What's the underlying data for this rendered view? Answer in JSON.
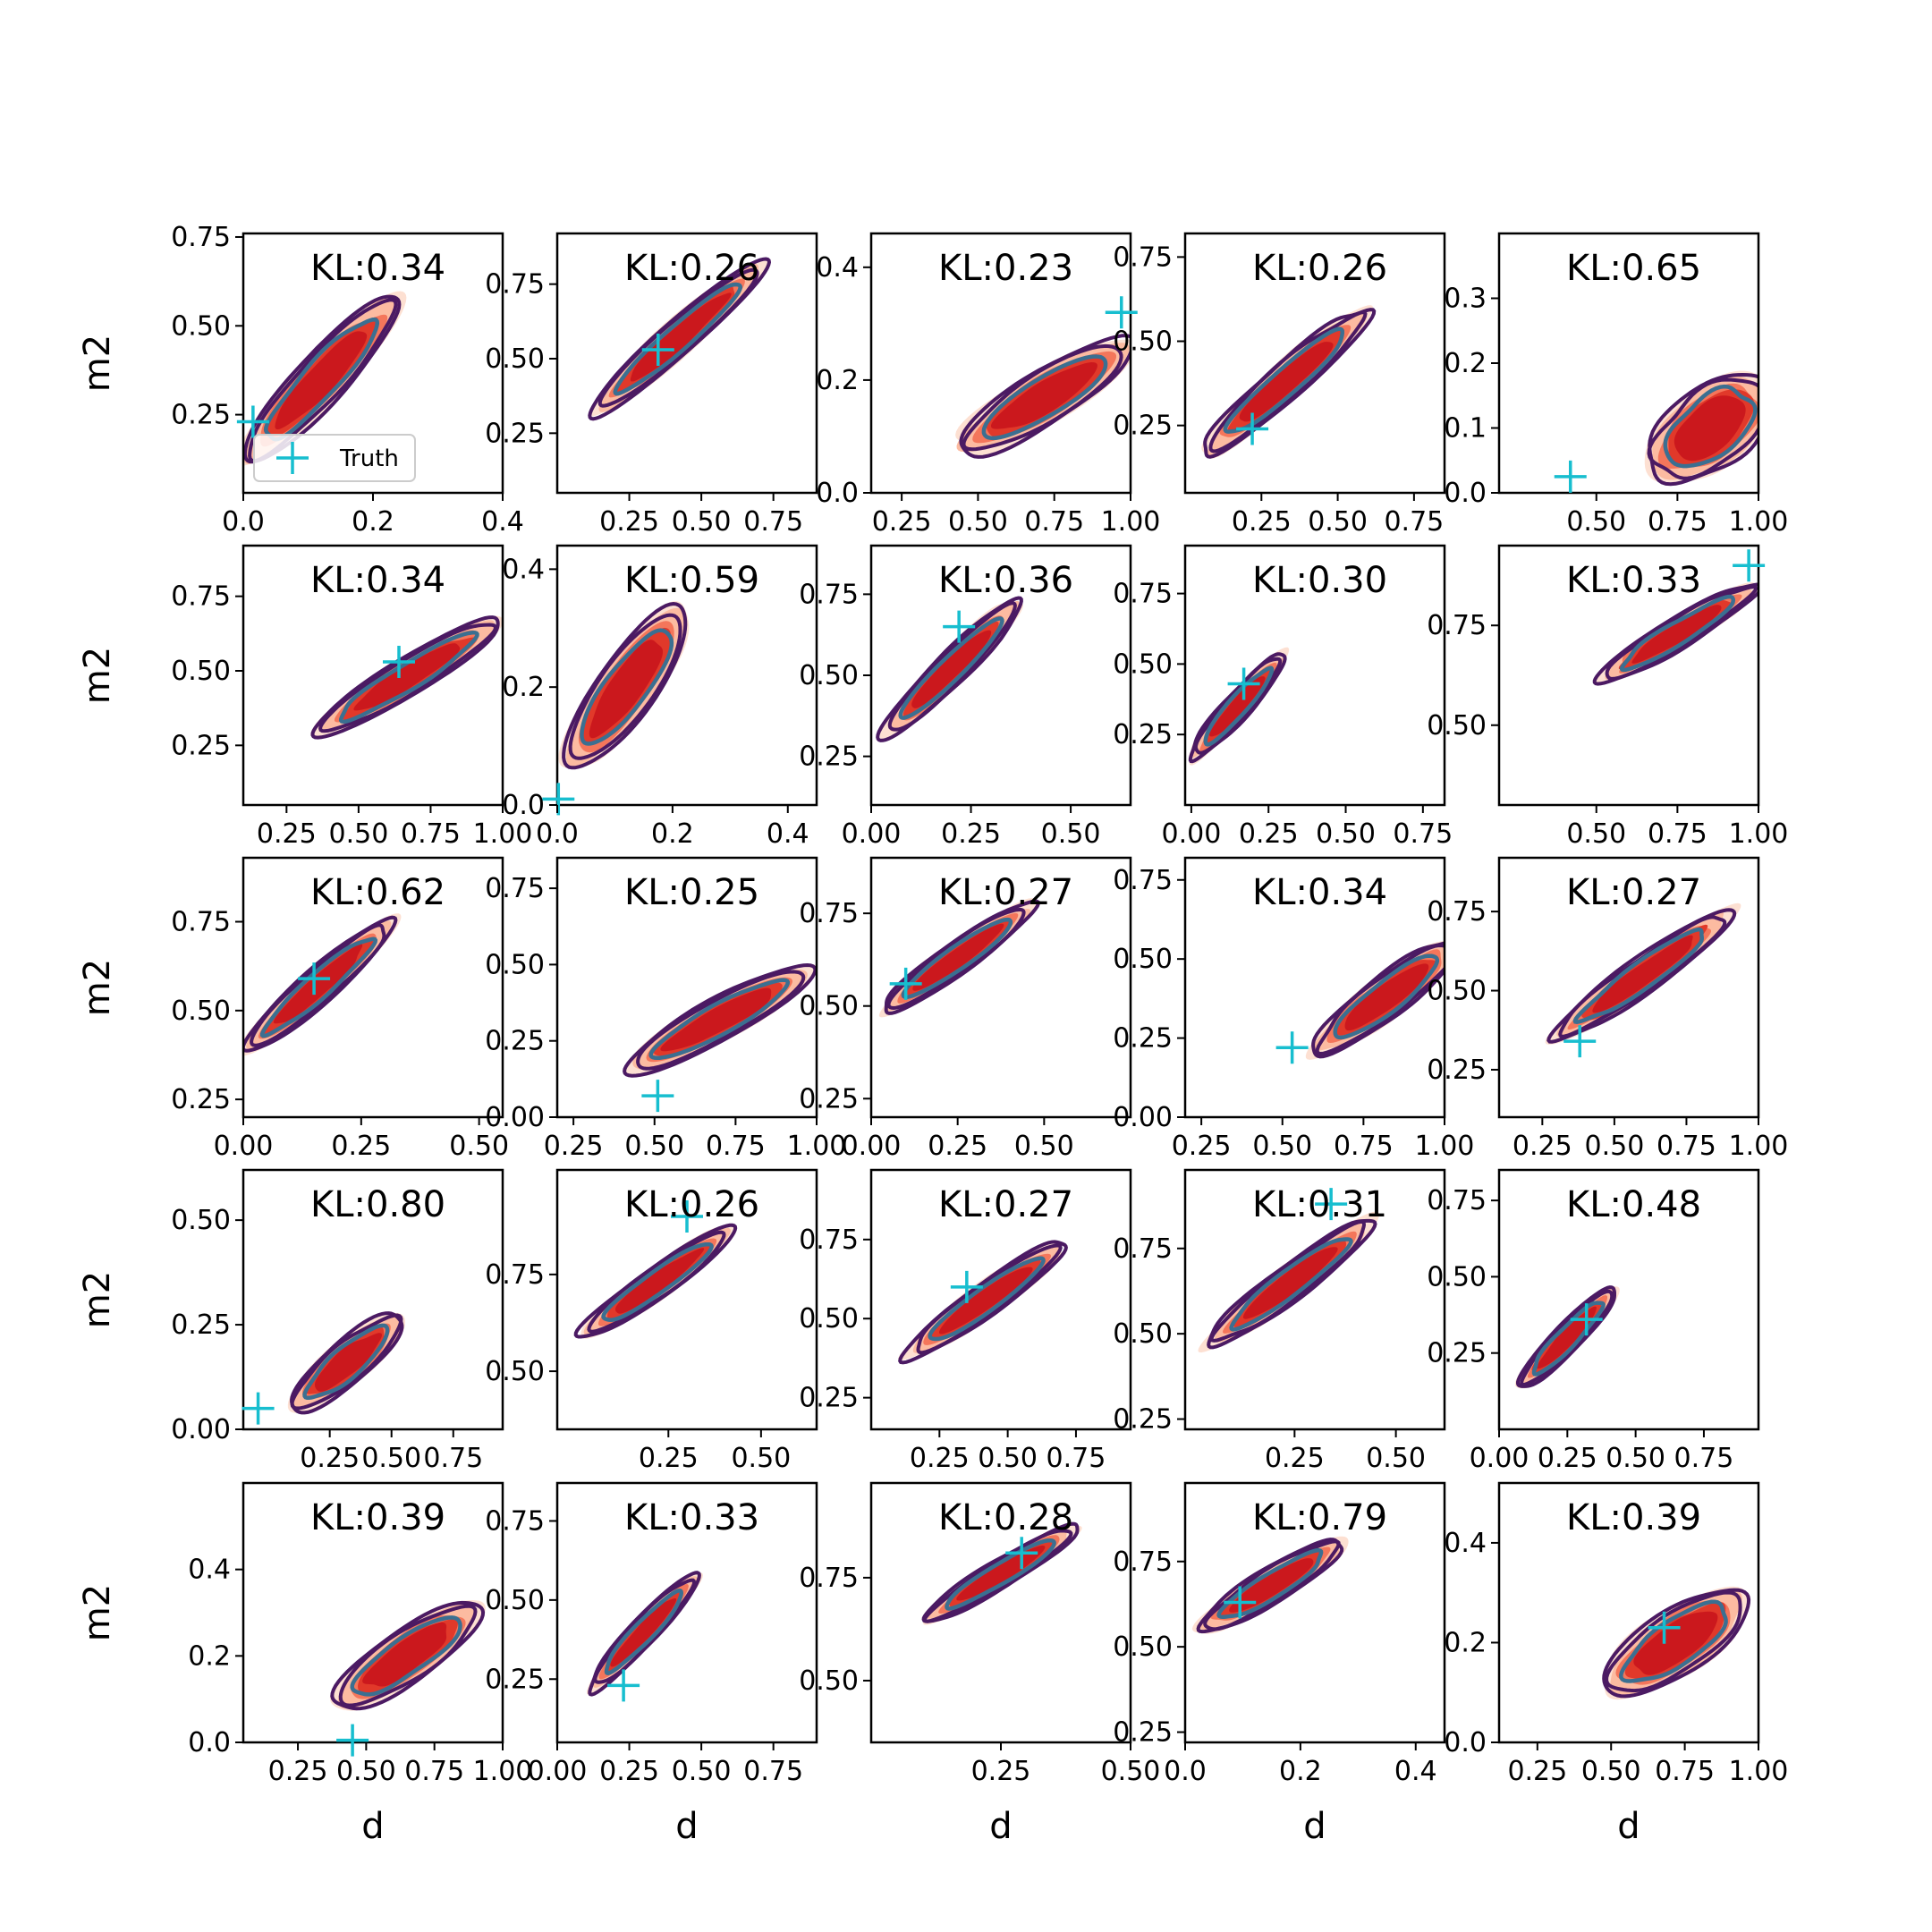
{
  "chart_data": {
    "type": "contour-grid",
    "xlabel": "d",
    "ylabel": "m2",
    "legend": {
      "label": "Truth",
      "placement": "lower-right of first panel"
    },
    "colors": {
      "fill_levels": [
        "#fde0d2",
        "#fcbba1",
        "#f4765b",
        "#e1392a",
        "#cb181d"
      ],
      "outer_contour": "#4b1a63",
      "inner_contour": "#3b6f91",
      "truth_marker": "#17becf"
    },
    "panels": [
      {
        "kl": "KL:0.34",
        "xlim": [
          0,
          0.4
        ],
        "xticks": [
          0,
          0.2,
          0.4
        ],
        "xticklabels": [
          "0.0",
          "0.2",
          "0.4"
        ],
        "ylim": [
          0.03,
          0.76
        ],
        "yticks": [
          0.25,
          0.5,
          0.75
        ],
        "yticklabels": [
          "0.25",
          "0.50",
          "0.75"
        ],
        "truth": [
          0.015,
          0.23
        ],
        "center": [
          0.12,
          0.35
        ],
        "size": [
          0.13,
          0.17
        ],
        "rho": 0.82,
        "rot": 0.82
      },
      {
        "kl": "KL:0.26",
        "xlim": [
          0,
          0.9
        ],
        "xticks": [
          0.25,
          0.5,
          0.75
        ],
        "xticklabels": [
          "0.25",
          "0.50",
          "0.75"
        ],
        "ylim": [
          0.05,
          0.92
        ],
        "yticks": [
          0.25,
          0.5,
          0.75
        ],
        "yticklabels": [
          "0.25",
          "0.50",
          "0.75"
        ],
        "truth": [
          0.35,
          0.53
        ],
        "center": [
          0.42,
          0.57
        ],
        "size": [
          0.25,
          0.22
        ],
        "rho": 0.93,
        "rot": 0.72
      },
      {
        "kl": "KL:0.23",
        "xlim": [
          0.15,
          1.0
        ],
        "xticks": [
          0.25,
          0.5,
          0.75,
          1.0
        ],
        "xticklabels": [
          "0.25",
          "0.50",
          "0.75",
          "1.00"
        ],
        "ylim": [
          0,
          0.46
        ],
        "yticks": [
          0,
          0.2,
          0.4
        ],
        "yticklabels": [
          "0.0",
          "0.2",
          "0.4"
        ],
        "truth": [
          0.97,
          0.32
        ],
        "center": [
          0.72,
          0.17
        ],
        "size": [
          0.22,
          0.12
        ],
        "rho": 0.75,
        "rot": 0.55
      },
      {
        "kl": "KL:0.26",
        "xlim": [
          0,
          0.85
        ],
        "xticks": [
          0.25,
          0.5,
          0.75
        ],
        "xticklabels": [
          "0.25",
          "0.50",
          "0.75"
        ],
        "ylim": [
          0.05,
          0.82
        ],
        "yticks": [
          0.25,
          0.5,
          0.75
        ],
        "yticklabels": [
          "0.25",
          "0.50",
          "0.75"
        ],
        "truth": [
          0.22,
          0.24
        ],
        "center": [
          0.33,
          0.38
        ],
        "size": [
          0.22,
          0.2
        ],
        "rho": 0.9,
        "rot": 0.72
      },
      {
        "kl": "KL:0.65",
        "xlim": [
          0.2,
          1.0
        ],
        "xticks": [
          0.5,
          0.75,
          1.0
        ],
        "xticklabels": [
          "0.50",
          "0.75",
          "1.00"
        ],
        "ylim": [
          0,
          0.4
        ],
        "yticks": [
          0,
          0.1,
          0.2,
          0.3
        ],
        "yticklabels": [
          "0.0",
          "0.1",
          "0.2",
          "0.3"
        ],
        "truth": [
          0.42,
          0.025
        ],
        "center": [
          0.85,
          0.1
        ],
        "size": [
          0.17,
          0.1
        ],
        "rho": 0.4,
        "rot": 0.65
      },
      {
        "kl": "KL:0.34",
        "xlim": [
          0.1,
          1.0
        ],
        "xticks": [
          0.25,
          0.5,
          0.75,
          1.0
        ],
        "xticklabels": [
          "0.25",
          "0.50",
          "0.75",
          "1.00"
        ],
        "ylim": [
          0.05,
          0.92
        ],
        "yticks": [
          0.25,
          0.5,
          0.75
        ],
        "yticklabels": [
          "0.25",
          "0.50",
          "0.75"
        ],
        "truth": [
          0.64,
          0.53
        ],
        "center": [
          0.67,
          0.48
        ],
        "size": [
          0.27,
          0.19
        ],
        "rho": 0.9,
        "rot": 0.55
      },
      {
        "kl": "KL:0.59",
        "xlim": [
          0,
          0.45
        ],
        "xticks": [
          0,
          0.2,
          0.4
        ],
        "xticklabels": [
          "0.0",
          "0.2",
          "0.4"
        ],
        "ylim": [
          0,
          0.44
        ],
        "yticks": [
          0,
          0.2,
          0.4
        ],
        "yticklabels": [
          "0.0",
          "0.2",
          "0.4"
        ],
        "truth": [
          0.002,
          0.01
        ],
        "center": [
          0.12,
          0.2
        ],
        "size": [
          0.08,
          0.15
        ],
        "rho": 0.7,
        "rot": 0.95
      },
      {
        "kl": "KL:0.36",
        "xlim": [
          0,
          0.65
        ],
        "xticks": [
          0,
          0.25,
          0.5
        ],
        "xticklabels": [
          "0.00",
          "0.25",
          "0.50"
        ],
        "ylim": [
          0.1,
          0.9
        ],
        "yticks": [
          0.25,
          0.5,
          0.75
        ],
        "yticklabels": [
          "0.25",
          "0.50",
          "0.75"
        ],
        "truth": [
          0.22,
          0.65
        ],
        "center": [
          0.2,
          0.52
        ],
        "size": [
          0.15,
          0.18
        ],
        "rho": 0.9,
        "rot": 0.78
      },
      {
        "kl": "KL:0.30",
        "xlim": [
          -0.02,
          0.82
        ],
        "xticks": [
          0,
          0.25,
          0.5,
          0.75
        ],
        "xticklabels": [
          "0.00",
          "0.25",
          "0.50",
          "0.75"
        ],
        "ylim": [
          0,
          0.92
        ],
        "yticks": [
          0.25,
          0.5,
          0.75
        ],
        "yticklabels": [
          "0.25",
          "0.50",
          "0.75"
        ],
        "truth": [
          0.17,
          0.43
        ],
        "center": [
          0.15,
          0.35
        ],
        "size": [
          0.12,
          0.18
        ],
        "rho": 0.88,
        "rot": 0.85
      },
      {
        "kl": "KL:0.33",
        "xlim": [
          0.2,
          1.0
        ],
        "xticks": [
          0.5,
          0.75,
          1.0
        ],
        "xticklabels": [
          "0.50",
          "0.75",
          "1.00"
        ],
        "ylim": [
          0.3,
          0.95
        ],
        "yticks": [
          0.5,
          0.75
        ],
        "yticklabels": [
          "0.50",
          "0.75"
        ],
        "truth": [
          0.97,
          0.9
        ],
        "center": [
          0.75,
          0.73
        ],
        "size": [
          0.2,
          0.12
        ],
        "rho": 0.9,
        "rot": 0.55
      },
      {
        "kl": "KL:0.62",
        "xlim": [
          0,
          0.55
        ],
        "xticks": [
          0,
          0.25,
          0.5
        ],
        "xticklabels": [
          "0.00",
          "0.25",
          "0.50"
        ],
        "ylim": [
          0.2,
          0.93
        ],
        "yticks": [
          0.25,
          0.5,
          0.75
        ],
        "yticklabels": [
          "0.25",
          "0.50",
          "0.75"
        ],
        "truth": [
          0.15,
          0.59
        ],
        "center": [
          0.16,
          0.57
        ],
        "size": [
          0.14,
          0.16
        ],
        "rho": 0.9,
        "rot": 0.72
      },
      {
        "kl": "KL:0.25",
        "xlim": [
          0.2,
          1.0
        ],
        "xticks": [
          0.25,
          0.5,
          0.75,
          1.0
        ],
        "xticklabels": [
          "0.25",
          "0.50",
          "0.75",
          "1.00"
        ],
        "ylim": [
          0,
          0.85
        ],
        "yticks": [
          0,
          0.25,
          0.5,
          0.75
        ],
        "yticklabels": [
          "0.00",
          "0.25",
          "0.50",
          "0.75"
        ],
        "truth": [
          0.51,
          0.07
        ],
        "center": [
          0.7,
          0.32
        ],
        "size": [
          0.27,
          0.15
        ],
        "rho": 0.85,
        "rot": 0.5
      },
      {
        "kl": "KL:0.27",
        "xlim": [
          0,
          0.75
        ],
        "xticks": [
          0,
          0.25,
          0.5
        ],
        "xticklabels": [
          "0.00",
          "0.25",
          "0.50"
        ],
        "ylim": [
          0.2,
          0.9
        ],
        "yticks": [
          0.25,
          0.5,
          0.75
        ],
        "yticklabels": [
          "0.25",
          "0.50",
          "0.75"
        ],
        "truth": [
          0.1,
          0.56
        ],
        "center": [
          0.25,
          0.63
        ],
        "size": [
          0.2,
          0.12
        ],
        "rho": 0.9,
        "rot": 0.62
      },
      {
        "kl": "KL:0.34",
        "xlim": [
          0.2,
          1.0
        ],
        "xticks": [
          0.25,
          0.5,
          0.75,
          1.0
        ],
        "xticklabels": [
          "0.25",
          "0.50",
          "0.75",
          "1.00"
        ],
        "ylim": [
          0,
          0.82
        ],
        "yticks": [
          0,
          0.25,
          0.5,
          0.75
        ],
        "yticklabels": [
          "0.00",
          "0.25",
          "0.50",
          "0.75"
        ],
        "truth": [
          0.53,
          0.22
        ],
        "center": [
          0.82,
          0.38
        ],
        "size": [
          0.2,
          0.17
        ],
        "rho": 0.8,
        "rot": 0.65
      },
      {
        "kl": "KL:0.27",
        "xlim": [
          0.1,
          1.0
        ],
        "xticks": [
          0.25,
          0.5,
          0.75,
          1.0
        ],
        "xticklabels": [
          "0.25",
          "0.50",
          "0.75",
          "1.00"
        ],
        "ylim": [
          0.1,
          0.92
        ],
        "yticks": [
          0.25,
          0.5,
          0.75
        ],
        "yticklabels": [
          "0.25",
          "0.50",
          "0.75"
        ],
        "truth": [
          0.38,
          0.34
        ],
        "center": [
          0.6,
          0.55
        ],
        "size": [
          0.27,
          0.18
        ],
        "rho": 0.92,
        "rot": 0.62
      },
      {
        "kl": "KL:0.80",
        "xlim": [
          -0.1,
          0.95
        ],
        "xticks": [
          0.25,
          0.5,
          0.75
        ],
        "xticklabels": [
          "0.25",
          "0.50",
          "0.75"
        ],
        "ylim": [
          0,
          0.62
        ],
        "yticks": [
          0,
          0.25,
          0.5
        ],
        "yticklabels": [
          "0.00",
          "0.25",
          "0.50"
        ],
        "truth": [
          -0.04,
          0.05
        ],
        "center": [
          0.32,
          0.16
        ],
        "size": [
          0.16,
          0.14
        ],
        "rho": 0.7,
        "rot": 0.7
      },
      {
        "kl": "KL:0.26",
        "xlim": [
          -0.05,
          0.65
        ],
        "xticks": [
          0.25,
          0.5
        ],
        "xticklabels": [
          "0.25",
          "0.50"
        ],
        "ylim": [
          0.35,
          1.02
        ],
        "yticks": [
          0.5,
          0.75
        ],
        "yticklabels": [
          "0.50",
          "0.75"
        ],
        "truth": [
          0.3,
          0.9
        ],
        "center": [
          0.22,
          0.73
        ],
        "size": [
          0.17,
          0.13
        ],
        "rho": 0.9,
        "rot": 0.62
      },
      {
        "kl": "KL:0.27",
        "xlim": [
          0,
          0.95
        ],
        "xticks": [
          0.25,
          0.5,
          0.75
        ],
        "xticklabels": [
          "0.25",
          "0.50",
          "0.75"
        ],
        "ylim": [
          0.15,
          0.97
        ],
        "yticks": [
          0.25,
          0.5,
          0.75
        ],
        "yticklabels": [
          "0.25",
          "0.50",
          "0.75"
        ],
        "truth": [
          0.35,
          0.6
        ],
        "center": [
          0.42,
          0.56
        ],
        "size": [
          0.24,
          0.17
        ],
        "rho": 0.9,
        "rot": 0.62
      },
      {
        "kl": "KL:0.31",
        "xlim": [
          -0.02,
          0.62
        ],
        "xticks": [
          0.25,
          0.5
        ],
        "xticklabels": [
          "0.25",
          "0.50"
        ],
        "ylim": [
          0.22,
          0.98
        ],
        "yticks": [
          0.25,
          0.5,
          0.75
        ],
        "yticklabels": [
          "0.25",
          "0.50",
          "0.75"
        ],
        "truth": [
          0.34,
          0.88
        ],
        "center": [
          0.24,
          0.65
        ],
        "size": [
          0.17,
          0.17
        ],
        "rho": 0.9,
        "rot": 0.65
      },
      {
        "kl": "KL:0.48",
        "xlim": [
          0,
          0.95
        ],
        "xticks": [
          0,
          0.25,
          0.5,
          0.75
        ],
        "xticklabels": [
          "0.00",
          "0.25",
          "0.50",
          "0.75"
        ],
        "ylim": [
          0,
          0.85
        ],
        "yticks": [
          0.25,
          0.5,
          0.75
        ],
        "yticklabels": [
          "0.25",
          "0.50",
          "0.75"
        ],
        "truth": [
          0.32,
          0.36
        ],
        "center": [
          0.25,
          0.3
        ],
        "size": [
          0.13,
          0.17
        ],
        "rho": 0.85,
        "rot": 0.8
      },
      {
        "kl": "KL:0.39",
        "xlim": [
          0.05,
          1.0
        ],
        "xticks": [
          0.25,
          0.5,
          0.75,
          1.0
        ],
        "xticklabels": [
          "0.25",
          "0.50",
          "0.75",
          "1.00"
        ],
        "ylim": [
          0,
          0.6
        ],
        "yticks": [
          0,
          0.2,
          0.4
        ],
        "yticklabels": [
          "0.0",
          "0.2",
          "0.4"
        ],
        "truth": [
          0.45,
          0.005
        ],
        "center": [
          0.65,
          0.2
        ],
        "size": [
          0.22,
          0.14
        ],
        "rho": 0.7,
        "rot": 0.6
      },
      {
        "kl": "KL:0.33",
        "xlim": [
          0,
          0.9
        ],
        "xticks": [
          0,
          0.25,
          0.5,
          0.75
        ],
        "xticklabels": [
          "0.00",
          "0.25",
          "0.50",
          "0.75"
        ],
        "ylim": [
          0.05,
          0.87
        ],
        "yticks": [
          0.25,
          0.5,
          0.75
        ],
        "yticklabels": [
          "0.25",
          "0.50",
          "0.75"
        ],
        "truth": [
          0.23,
          0.23
        ],
        "center": [
          0.3,
          0.4
        ],
        "size": [
          0.14,
          0.18
        ],
        "rho": 0.9,
        "rot": 0.82
      },
      {
        "kl": "KL:0.28",
        "xlim": [
          0,
          0.5
        ],
        "xticks": [
          0.25,
          0.5
        ],
        "xticklabels": [
          "0.25",
          "0.50"
        ],
        "ylim": [
          0.35,
          0.98
        ],
        "yticks": [
          0.5,
          0.75
        ],
        "yticklabels": [
          "0.50",
          "0.75"
        ],
        "truth": [
          0.29,
          0.81
        ],
        "center": [
          0.25,
          0.76
        ],
        "size": [
          0.13,
          0.1
        ],
        "rho": 0.92,
        "rot": 0.55
      },
      {
        "kl": "KL:0.79",
        "xlim": [
          0,
          0.45
        ],
        "xticks": [
          0,
          0.2,
          0.4
        ],
        "xticklabels": [
          "0.0",
          "0.2",
          "0.4"
        ],
        "ylim": [
          0.22,
          0.98
        ],
        "yticks": [
          0.25,
          0.5,
          0.75
        ],
        "yticklabels": [
          "0.25",
          "0.50",
          "0.75"
        ],
        "truth": [
          0.095,
          0.63
        ],
        "center": [
          0.15,
          0.68
        ],
        "size": [
          0.11,
          0.13
        ],
        "rho": 0.85,
        "rot": 0.55
      },
      {
        "kl": "KL:0.39",
        "xlim": [
          0.12,
          1.0
        ],
        "xticks": [
          0.25,
          0.5,
          0.75,
          1.0
        ],
        "xticklabels": [
          "0.25",
          "0.50",
          "0.75",
          "1.00"
        ],
        "ylim": [
          0,
          0.52
        ],
        "yticks": [
          0,
          0.2,
          0.4
        ],
        "yticklabels": [
          "0.0",
          "0.2",
          "0.4"
        ],
        "truth": [
          0.68,
          0.23
        ],
        "center": [
          0.72,
          0.2
        ],
        "size": [
          0.2,
          0.13
        ],
        "rho": 0.6,
        "rot": 0.6
      }
    ]
  }
}
